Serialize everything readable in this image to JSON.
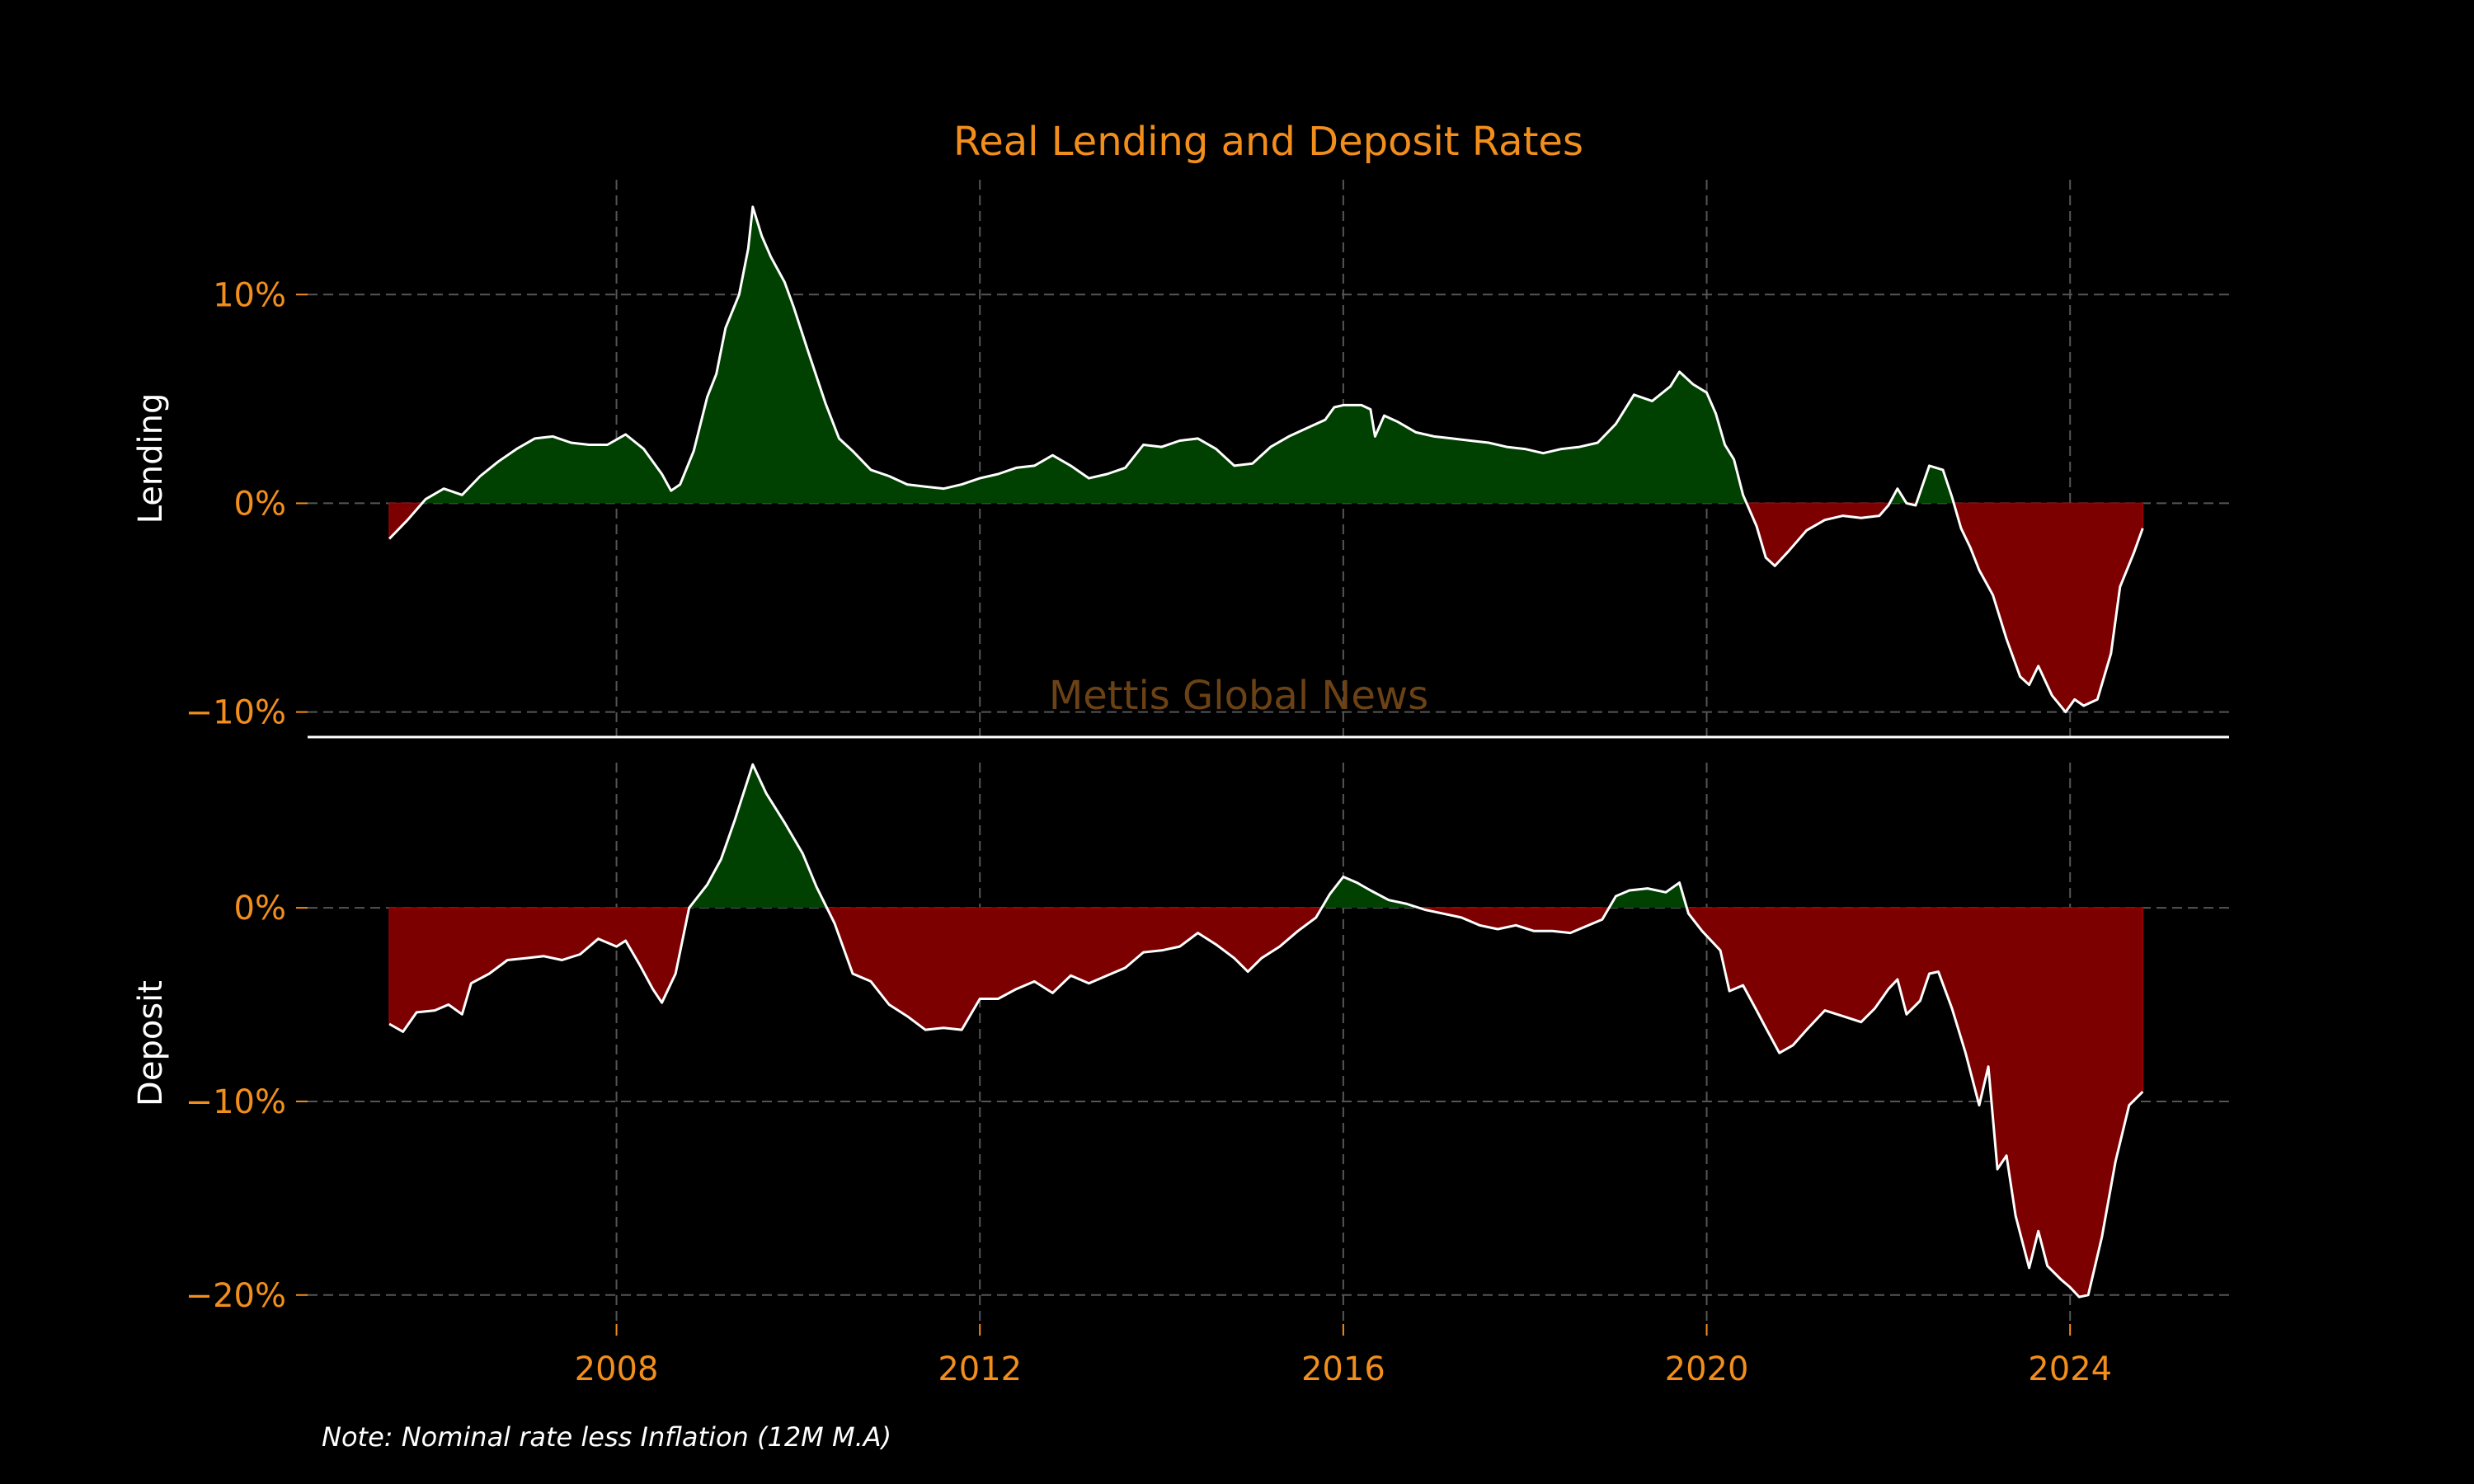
{
  "chart_data": {
    "title": "Real Lending and Deposit Rates",
    "note": "Note: Nominal rate less Inflation (12M M.A)",
    "watermark": "Mettis Global News",
    "colors": {
      "positive": "#004000",
      "negative": "#7d0000",
      "line": "#ffffff",
      "text": "#f28e1c",
      "grid": "#555555"
    },
    "grid": true,
    "x_axis": {
      "type": "date",
      "min": 2004.6,
      "max": 2025.75,
      "ticks": [
        2008,
        2012,
        2016,
        2020,
        2024
      ]
    },
    "panels": [
      {
        "name": "Lending",
        "type": "area",
        "ylabel": "Lending",
        "ylim": [
          -11.2,
          15.5
        ],
        "yticks": [
          10,
          0,
          -10
        ],
        "tick_labels": [
          "10%",
          "0%",
          "−10%"
        ],
        "points": [
          [
            2005.5,
            -1.7
          ],
          [
            2005.7,
            -0.8
          ],
          [
            2005.9,
            0.2
          ],
          [
            2006.1,
            0.7
          ],
          [
            2006.3,
            0.4
          ],
          [
            2006.5,
            1.3
          ],
          [
            2006.7,
            2.0
          ],
          [
            2006.9,
            2.6
          ],
          [
            2007.1,
            3.1
          ],
          [
            2007.3,
            3.2
          ],
          [
            2007.5,
            2.9
          ],
          [
            2007.7,
            2.8
          ],
          [
            2007.9,
            2.8
          ],
          [
            2008.1,
            3.3
          ],
          [
            2008.3,
            2.6
          ],
          [
            2008.5,
            1.4
          ],
          [
            2008.6,
            0.6
          ],
          [
            2008.7,
            0.9
          ],
          [
            2008.85,
            2.5
          ],
          [
            2009.0,
            5.1
          ],
          [
            2009.1,
            6.2
          ],
          [
            2009.2,
            8.4
          ],
          [
            2009.35,
            10.0
          ],
          [
            2009.45,
            12.2
          ],
          [
            2009.5,
            14.2
          ],
          [
            2009.6,
            12.8
          ],
          [
            2009.7,
            11.8
          ],
          [
            2009.85,
            10.6
          ],
          [
            2009.95,
            9.4
          ],
          [
            2010.1,
            7.4
          ],
          [
            2010.3,
            4.8
          ],
          [
            2010.45,
            3.1
          ],
          [
            2010.6,
            2.5
          ],
          [
            2010.8,
            1.6
          ],
          [
            2011.0,
            1.3
          ],
          [
            2011.2,
            0.9
          ],
          [
            2011.4,
            0.8
          ],
          [
            2011.6,
            0.7
          ],
          [
            2011.8,
            0.9
          ],
          [
            2012.0,
            1.2
          ],
          [
            2012.2,
            1.4
          ],
          [
            2012.4,
            1.7
          ],
          [
            2012.6,
            1.8
          ],
          [
            2012.8,
            2.3
          ],
          [
            2013.0,
            1.8
          ],
          [
            2013.2,
            1.2
          ],
          [
            2013.4,
            1.4
          ],
          [
            2013.6,
            1.7
          ],
          [
            2013.8,
            2.8
          ],
          [
            2014.0,
            2.7
          ],
          [
            2014.2,
            3.0
          ],
          [
            2014.4,
            3.1
          ],
          [
            2014.6,
            2.6
          ],
          [
            2014.8,
            1.8
          ],
          [
            2015.0,
            1.9
          ],
          [
            2015.2,
            2.7
          ],
          [
            2015.4,
            3.2
          ],
          [
            2015.6,
            3.6
          ],
          [
            2015.8,
            4.0
          ],
          [
            2015.9,
            4.6
          ],
          [
            2016.0,
            4.7
          ],
          [
            2016.2,
            4.7
          ],
          [
            2016.3,
            4.5
          ],
          [
            2016.35,
            3.2
          ],
          [
            2016.45,
            4.2
          ],
          [
            2016.6,
            3.9
          ],
          [
            2016.8,
            3.4
          ],
          [
            2017.0,
            3.2
          ],
          [
            2017.2,
            3.1
          ],
          [
            2017.4,
            3.0
          ],
          [
            2017.6,
            2.9
          ],
          [
            2017.8,
            2.7
          ],
          [
            2018.0,
            2.6
          ],
          [
            2018.2,
            2.4
          ],
          [
            2018.4,
            2.6
          ],
          [
            2018.6,
            2.7
          ],
          [
            2018.8,
            2.9
          ],
          [
            2019.0,
            3.8
          ],
          [
            2019.2,
            5.2
          ],
          [
            2019.4,
            4.9
          ],
          [
            2019.6,
            5.6
          ],
          [
            2019.7,
            6.3
          ],
          [
            2019.85,
            5.7
          ],
          [
            2020.0,
            5.3
          ],
          [
            2020.1,
            4.3
          ],
          [
            2020.2,
            2.8
          ],
          [
            2020.3,
            2.1
          ],
          [
            2020.4,
            0.4
          ],
          [
            2020.55,
            -1.1
          ],
          [
            2020.65,
            -2.6
          ],
          [
            2020.75,
            -3.0
          ],
          [
            2020.9,
            -2.3
          ],
          [
            2021.1,
            -1.3
          ],
          [
            2021.3,
            -0.8
          ],
          [
            2021.5,
            -0.6
          ],
          [
            2021.7,
            -0.7
          ],
          [
            2021.9,
            -0.6
          ],
          [
            2022.0,
            -0.1
          ],
          [
            2022.1,
            0.7
          ],
          [
            2022.2,
            0.0
          ],
          [
            2022.3,
            -0.1
          ],
          [
            2022.45,
            1.8
          ],
          [
            2022.6,
            1.6
          ],
          [
            2022.7,
            0.3
          ],
          [
            2022.8,
            -1.2
          ],
          [
            2022.9,
            -2.1
          ],
          [
            2023.0,
            -3.2
          ],
          [
            2023.15,
            -4.4
          ],
          [
            2023.3,
            -6.5
          ],
          [
            2023.45,
            -8.3
          ],
          [
            2023.55,
            -8.7
          ],
          [
            2023.65,
            -7.8
          ],
          [
            2023.8,
            -9.2
          ],
          [
            2023.95,
            -10.0
          ],
          [
            2024.05,
            -9.4
          ],
          [
            2024.15,
            -9.7
          ],
          [
            2024.3,
            -9.4
          ],
          [
            2024.45,
            -7.2
          ],
          [
            2024.55,
            -4.0
          ],
          [
            2024.7,
            -2.4
          ],
          [
            2024.8,
            -1.2
          ]
        ]
      },
      {
        "name": "Deposit",
        "type": "area",
        "ylabel": "Deposit",
        "ylim": [
          -21.5,
          7.5
        ],
        "yticks": [
          0,
          -10,
          -20
        ],
        "tick_labels": [
          "0%",
          "−10%",
          "−20%"
        ],
        "points": [
          [
            2005.5,
            -6.0
          ],
          [
            2005.65,
            -6.4
          ],
          [
            2005.8,
            -5.4
          ],
          [
            2006.0,
            -5.3
          ],
          [
            2006.15,
            -5.0
          ],
          [
            2006.3,
            -5.5
          ],
          [
            2006.4,
            -3.9
          ],
          [
            2006.6,
            -3.4
          ],
          [
            2006.8,
            -2.7
          ],
          [
            2007.0,
            -2.6
          ],
          [
            2007.2,
            -2.5
          ],
          [
            2007.4,
            -2.7
          ],
          [
            2007.6,
            -2.4
          ],
          [
            2007.8,
            -1.6
          ],
          [
            2008.0,
            -2.0
          ],
          [
            2008.1,
            -1.7
          ],
          [
            2008.25,
            -2.9
          ],
          [
            2008.4,
            -4.2
          ],
          [
            2008.5,
            -4.9
          ],
          [
            2008.65,
            -3.4
          ],
          [
            2008.8,
            0.0
          ],
          [
            2009.0,
            1.2
          ],
          [
            2009.15,
            2.5
          ],
          [
            2009.3,
            4.5
          ],
          [
            2009.5,
            7.4
          ],
          [
            2009.65,
            5.9
          ],
          [
            2009.85,
            4.4
          ],
          [
            2010.05,
            2.8
          ],
          [
            2010.2,
            1.1
          ],
          [
            2010.4,
            -0.8
          ],
          [
            2010.6,
            -3.4
          ],
          [
            2010.8,
            -3.8
          ],
          [
            2011.0,
            -5.0
          ],
          [
            2011.2,
            -5.6
          ],
          [
            2011.4,
            -6.3
          ],
          [
            2011.6,
            -6.2
          ],
          [
            2011.8,
            -6.3
          ],
          [
            2012.0,
            -4.7
          ],
          [
            2012.2,
            -4.7
          ],
          [
            2012.4,
            -4.2
          ],
          [
            2012.6,
            -3.8
          ],
          [
            2012.8,
            -4.4
          ],
          [
            2013.0,
            -3.5
          ],
          [
            2013.2,
            -3.9
          ],
          [
            2013.4,
            -3.5
          ],
          [
            2013.6,
            -3.1
          ],
          [
            2013.8,
            -2.3
          ],
          [
            2014.0,
            -2.2
          ],
          [
            2014.2,
            -2.0
          ],
          [
            2014.4,
            -1.3
          ],
          [
            2014.6,
            -1.9
          ],
          [
            2014.8,
            -2.6
          ],
          [
            2014.95,
            -3.3
          ],
          [
            2015.1,
            -2.6
          ],
          [
            2015.3,
            -2.0
          ],
          [
            2015.5,
            -1.2
          ],
          [
            2015.7,
            -0.5
          ],
          [
            2015.85,
            0.7
          ],
          [
            2016.0,
            1.6
          ],
          [
            2016.15,
            1.3
          ],
          [
            2016.3,
            0.9
          ],
          [
            2016.5,
            0.4
          ],
          [
            2016.7,
            0.2
          ],
          [
            2016.9,
            -0.1
          ],
          [
            2017.1,
            -0.3
          ],
          [
            2017.3,
            -0.5
          ],
          [
            2017.5,
            -0.9
          ],
          [
            2017.7,
            -1.1
          ],
          [
            2017.9,
            -0.9
          ],
          [
            2018.1,
            -1.2
          ],
          [
            2018.3,
            -1.2
          ],
          [
            2018.5,
            -1.3
          ],
          [
            2018.7,
            -0.9
          ],
          [
            2018.85,
            -0.6
          ],
          [
            2019.0,
            0.6
          ],
          [
            2019.15,
            0.9
          ],
          [
            2019.35,
            1.0
          ],
          [
            2019.55,
            0.8
          ],
          [
            2019.7,
            1.3
          ],
          [
            2019.8,
            -0.3
          ],
          [
            2019.95,
            -1.2
          ],
          [
            2020.15,
            -2.2
          ],
          [
            2020.25,
            -4.3
          ],
          [
            2020.4,
            -4.0
          ],
          [
            2020.55,
            -5.3
          ],
          [
            2020.65,
            -6.2
          ],
          [
            2020.8,
            -7.5
          ],
          [
            2020.95,
            -7.1
          ],
          [
            2021.1,
            -6.3
          ],
          [
            2021.3,
            -5.3
          ],
          [
            2021.5,
            -5.6
          ],
          [
            2021.7,
            -5.9
          ],
          [
            2021.85,
            -5.2
          ],
          [
            2022.0,
            -4.2
          ],
          [
            2022.1,
            -3.7
          ],
          [
            2022.2,
            -5.5
          ],
          [
            2022.35,
            -4.8
          ],
          [
            2022.45,
            -3.4
          ],
          [
            2022.55,
            -3.3
          ],
          [
            2022.7,
            -5.2
          ],
          [
            2022.85,
            -7.5
          ],
          [
            2023.0,
            -10.2
          ],
          [
            2023.1,
            -8.2
          ],
          [
            2023.2,
            -13.5
          ],
          [
            2023.3,
            -12.8
          ],
          [
            2023.4,
            -15.9
          ],
          [
            2023.55,
            -18.6
          ],
          [
            2023.65,
            -16.7
          ],
          [
            2023.75,
            -18.5
          ],
          [
            2023.9,
            -19.2
          ],
          [
            2024.0,
            -19.6
          ],
          [
            2024.1,
            -20.1
          ],
          [
            2024.2,
            -20.0
          ],
          [
            2024.35,
            -17.0
          ],
          [
            2024.5,
            -13.1
          ],
          [
            2024.65,
            -10.2
          ],
          [
            2024.8,
            -9.5
          ]
        ]
      }
    ]
  }
}
